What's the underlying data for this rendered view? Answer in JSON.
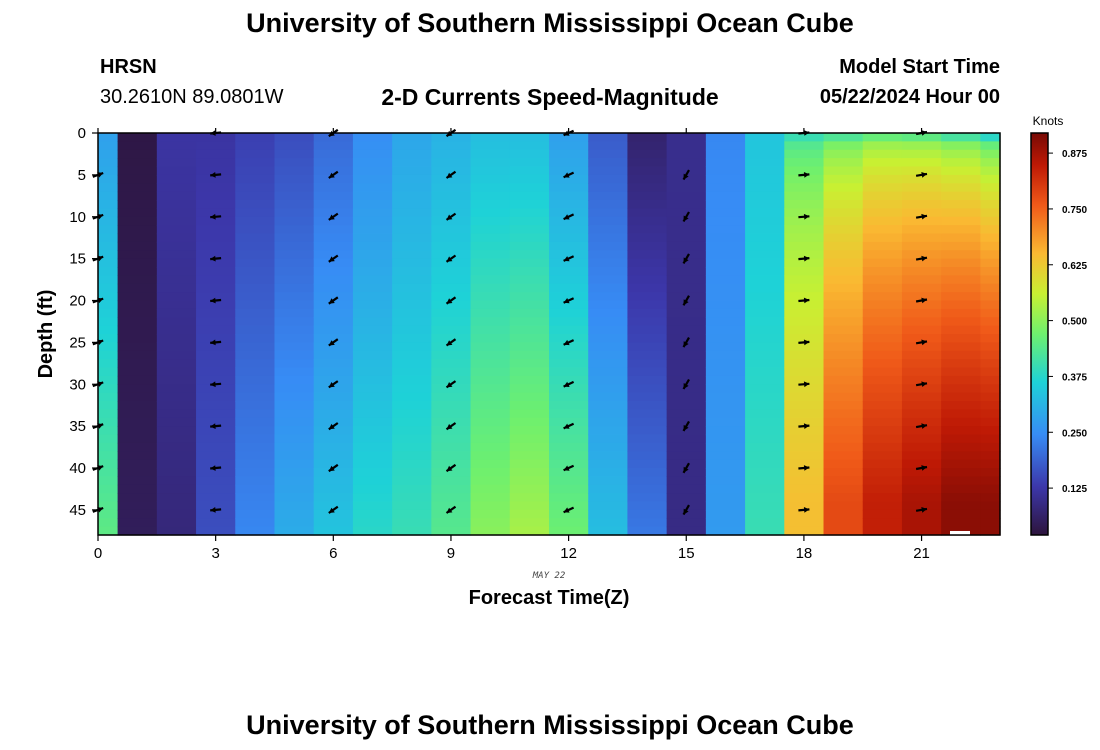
{
  "header": {
    "title": "University of Southern Mississippi Ocean Cube",
    "station": "HRSN",
    "coords": "30.2610N  89.0801W",
    "subtitle": "2-D Currents Speed-Magnitude",
    "model_label": "Model Start Time",
    "model_time": "05/22/2024 Hour 00"
  },
  "footer": {
    "title": "University of Southern Mississippi Ocean Cube"
  },
  "chart_data": {
    "type": "heatmap",
    "title": "2-D Currents Speed-Magnitude",
    "xlabel": "Forecast Time(Z)",
    "ylabel": "Depth (ft)",
    "date_label": "MAY 22",
    "x_ticks": [
      0,
      3,
      6,
      9,
      12,
      15,
      18,
      21
    ],
    "y_ticks": [
      0,
      5,
      10,
      15,
      20,
      25,
      30,
      35,
      40,
      45
    ],
    "xlim": [
      0,
      23
    ],
    "ylim": [
      48,
      0
    ],
    "colorbar": {
      "label": "Knots",
      "ticks": [
        "0.875",
        "0.750",
        "0.625",
        "0.500",
        "0.375",
        "0.250",
        "0.125"
      ],
      "tick_values": [
        0.875,
        0.75,
        0.625,
        0.5,
        0.375,
        0.25,
        0.125
      ],
      "range": [
        0.02,
        0.92
      ]
    },
    "columns": [
      {
        "hour": 0,
        "surface": 0.28,
        "bottom": 0.45,
        "transition": "linear"
      },
      {
        "hour": 1,
        "surface": 0.03,
        "bottom": 0.05,
        "transition": "linear"
      },
      {
        "hour": 2,
        "surface": 0.12,
        "bottom": 0.08,
        "transition": "linear"
      },
      {
        "hour": 3,
        "surface": 0.12,
        "bottom": 0.16,
        "transition": "linear"
      },
      {
        "hour": 4,
        "surface": 0.14,
        "bottom": 0.24,
        "transition": "linear"
      },
      {
        "hour": 5,
        "surface": 0.16,
        "bottom": 0.3,
        "transition": "linear"
      },
      {
        "hour": 6,
        "surface": 0.2,
        "bottom": 0.34,
        "transition": "linear"
      },
      {
        "hour": 7,
        "surface": 0.25,
        "bottom": 0.38,
        "transition": "linear"
      },
      {
        "hour": 8,
        "surface": 0.29,
        "bottom": 0.4,
        "transition": "linear"
      },
      {
        "hour": 9,
        "surface": 0.31,
        "bottom": 0.44,
        "transition": "linear"
      },
      {
        "hour": 10,
        "surface": 0.33,
        "bottom": 0.5,
        "transition": "linear"
      },
      {
        "hour": 11,
        "surface": 0.33,
        "bottom": 0.53,
        "transition": "linear"
      },
      {
        "hour": 12,
        "surface": 0.28,
        "bottom": 0.47,
        "transition": "linear"
      },
      {
        "hour": 13,
        "surface": 0.18,
        "bottom": 0.33,
        "transition": "linear"
      },
      {
        "hour": 14,
        "surface": 0.07,
        "bottom": 0.22,
        "transition": "linear"
      },
      {
        "hour": 15,
        "surface": 0.1,
        "bottom": 0.09,
        "transition": "linear"
      },
      {
        "hour": 16,
        "surface": 0.24,
        "bottom": 0.27,
        "transition": "linear"
      },
      {
        "hour": 17,
        "surface": 0.34,
        "bottom": 0.4,
        "transition": "linear"
      },
      {
        "hour": 18,
        "surface": 0.4,
        "bottom": 0.64,
        "transition": "fast"
      },
      {
        "hour": 19,
        "surface": 0.43,
        "bottom": 0.78,
        "transition": "fast"
      },
      {
        "hour": 20,
        "surface": 0.46,
        "bottom": 0.84,
        "transition": "fast"
      },
      {
        "hour": 21,
        "surface": 0.45,
        "bottom": 0.87,
        "transition": "fast"
      },
      {
        "hour": 22,
        "surface": 0.42,
        "bottom": 0.9,
        "transition": "fast"
      },
      {
        "hour": 23,
        "surface": 0.38,
        "bottom": 0.9,
        "transition": "fast"
      }
    ],
    "vectors": [
      {
        "hour": 0,
        "depths": [
          5,
          10,
          15,
          20,
          25,
          30,
          35,
          40,
          45
        ],
        "direction_deg": 20
      },
      {
        "hour": 3,
        "depths": [
          0,
          5,
          10,
          15,
          20,
          25,
          30,
          35,
          40,
          45
        ],
        "direction_deg": 185
      },
      {
        "hour": 6,
        "depths": [
          0,
          5,
          10,
          15,
          20,
          25,
          30,
          35,
          40,
          45
        ],
        "direction_deg": 215
      },
      {
        "hour": 9,
        "depths": [
          0,
          5,
          10,
          15,
          20,
          25,
          30,
          35,
          40,
          45
        ],
        "direction_deg": 215
      },
      {
        "hour": 12,
        "depths": [
          0,
          5,
          10,
          15,
          20,
          25,
          30,
          35,
          40,
          45
        ],
        "direction_deg": 205
      },
      {
        "hour": 15,
        "depths": [
          5,
          10,
          15,
          20,
          25,
          30,
          35,
          40,
          45
        ],
        "direction_deg": 240
      },
      {
        "hour": 18,
        "depths": [
          0,
          5,
          10,
          15,
          20,
          25,
          30,
          35,
          40,
          45
        ],
        "direction_deg": 5
      },
      {
        "hour": 21,
        "depths": [
          0,
          5,
          10,
          15,
          20,
          25,
          30,
          35,
          40,
          45
        ],
        "direction_deg": 10
      }
    ]
  }
}
